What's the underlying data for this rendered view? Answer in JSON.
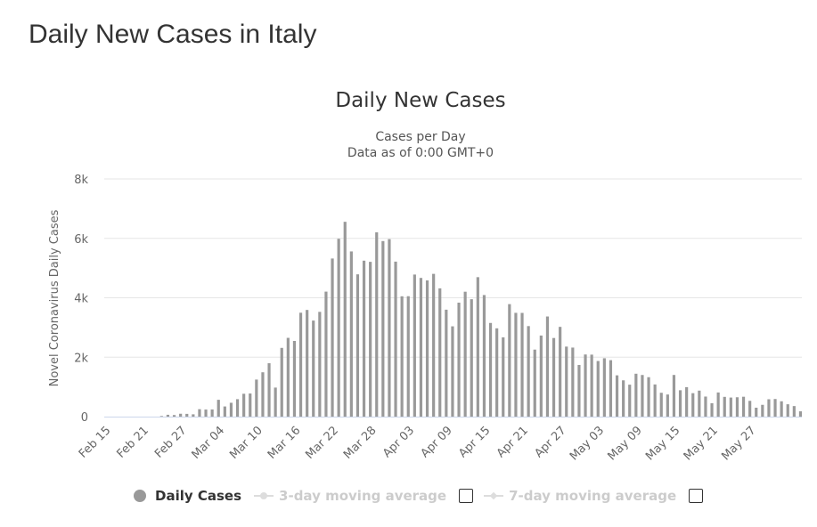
{
  "page": {
    "title": "Daily New Cases in Italy"
  },
  "chart_data": {
    "type": "bar",
    "title": "Daily New Cases",
    "subtitle_lines": [
      "Cases per Day",
      "Data as of 0:00 GMT+0"
    ],
    "ylabel": "Novel Coronavirus Daily Cases",
    "ylim": [
      0,
      8000
    ],
    "yticks": [
      {
        "value": 0,
        "label": "0"
      },
      {
        "value": 2000,
        "label": "2k"
      },
      {
        "value": 4000,
        "label": "4k"
      },
      {
        "value": 6000,
        "label": "6k"
      },
      {
        "value": 8000,
        "label": "8k"
      }
    ],
    "xtick_labels": [
      "Feb 15",
      "Feb 21",
      "Feb 27",
      "Mar 04",
      "Mar 10",
      "Mar 16",
      "Mar 22",
      "Mar 28",
      "Apr 03",
      "Apr 09",
      "Apr 15",
      "Apr 21",
      "Apr 27",
      "May 03",
      "May 09",
      "May 15",
      "May 21",
      "May 27"
    ],
    "bar_color": "#999999",
    "grid": true,
    "series": [
      {
        "name": "Daily Cases",
        "start_date": "Feb 15",
        "values": [
          0,
          0,
          0,
          0,
          0,
          0,
          0,
          0,
          20,
          62,
          53,
          97,
          93,
          78,
          250,
          238,
          240,
          566,
          342,
          466,
          587,
          769,
          778,
          1247,
          1492,
          1797,
          977,
          2313,
          2651,
          2547,
          3497,
          3590,
          3233,
          3526,
          4207,
          5322,
          5986,
          6557,
          5560,
          4789,
          5249,
          5210,
          6203,
          5909,
          5974,
          5217,
          4050,
          4053,
          4782,
          4668,
          4585,
          4805,
          4316,
          3599,
          3039,
          3836,
          4204,
          3951,
          4694,
          4092,
          3153,
          2972,
          2667,
          3786,
          3493,
          3491,
          3047,
          2256,
          2729,
          3370,
          2646,
          3021,
          2357,
          2324,
          1739,
          2091,
          2086,
          1872,
          1965,
          1900,
          1389,
          1221,
          1075,
          1444,
          1401,
          1327,
          1083,
          802,
          744,
          1402,
          888,
          992,
          789,
          875,
          675,
          451,
          813,
          665,
          642,
          652,
          669,
          531,
          300,
          397,
          584,
          593,
          516,
          416,
          355,
          178
        ]
      }
    ],
    "legend": [
      {
        "label": "Daily Cases",
        "active": true
      },
      {
        "label": "3-day moving average",
        "active": false
      },
      {
        "label": "7-day moving average",
        "active": false
      }
    ]
  }
}
